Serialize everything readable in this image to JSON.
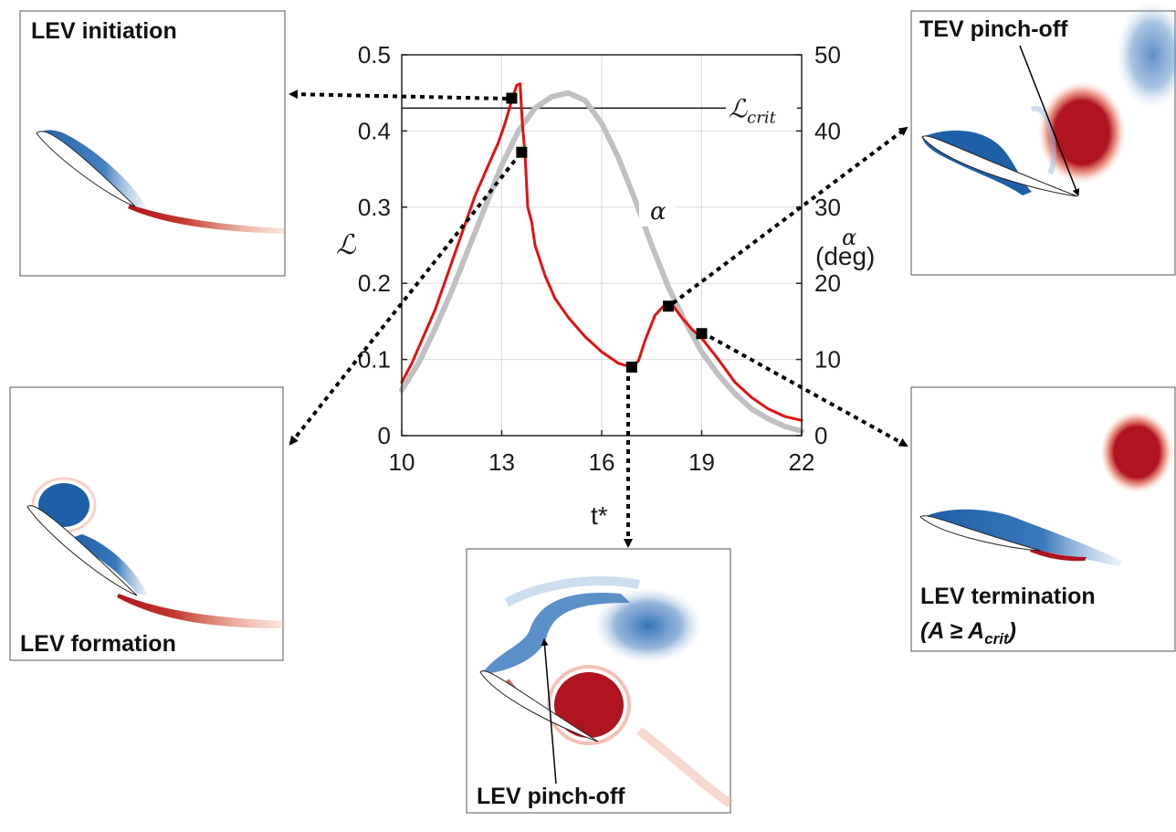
{
  "chart_data": {
    "type": "line",
    "x_label": "t*",
    "x_ticks": [
      "10",
      "13",
      "16",
      "19",
      "22"
    ],
    "xlim": [
      10,
      22
    ],
    "y_left_label": "ℒ",
    "y_left_ticks": [
      "0",
      "0.1",
      "0.2",
      "0.3",
      "0.4",
      "0.5"
    ],
    "ylim_left": [
      0,
      0.5
    ],
    "y_right_label_top": "α",
    "y_right_label_bottom": "(deg)",
    "y_right_ticks": [
      "0",
      "10",
      "20",
      "30",
      "40",
      "50"
    ],
    "ylim_right": [
      0,
      50
    ],
    "grid": true,
    "critical_line": {
      "label": "ℒ",
      "subscript": "crit",
      "value": 0.43
    },
    "alpha_curve_label": "α",
    "series": [
      {
        "color": "#e3110f",
        "axis": "left",
        "x": [
          10.0,
          10.3,
          10.6,
          11.0,
          11.4,
          11.8,
          12.2,
          12.6,
          12.9,
          13.1,
          13.3,
          13.45,
          13.55,
          13.62,
          13.7,
          13.78,
          13.9,
          14.0,
          14.3,
          14.6,
          15.0,
          15.5,
          16.0,
          16.5,
          16.9,
          17.1,
          17.3,
          17.6,
          17.9,
          18.15,
          18.4,
          18.7,
          19.0,
          19.5,
          20.0,
          20.5,
          21.0,
          21.5,
          22.0
        ],
        "values": [
          0.07,
          0.095,
          0.125,
          0.165,
          0.215,
          0.265,
          0.315,
          0.355,
          0.385,
          0.41,
          0.44,
          0.46,
          0.462,
          0.41,
          0.37,
          0.3,
          0.28,
          0.25,
          0.21,
          0.18,
          0.155,
          0.13,
          0.11,
          0.095,
          0.09,
          0.098,
          0.125,
          0.158,
          0.172,
          0.17,
          0.155,
          0.14,
          0.128,
          0.1,
          0.07,
          0.05,
          0.035,
          0.025,
          0.02
        ]
      },
      {
        "color": "#c0c0c0",
        "axis": "right",
        "x": [
          10.0,
          10.5,
          11.0,
          11.5,
          12.0,
          12.5,
          13.0,
          13.5,
          14.0,
          14.5,
          15.0,
          15.5,
          16.0,
          16.5,
          17.0,
          17.5,
          18.0,
          18.5,
          19.0,
          19.5,
          20.0,
          20.5,
          21.0,
          21.5,
          22.0
        ],
        "values": [
          6.0,
          9.5,
          14.0,
          19.0,
          24.5,
          30.0,
          35.5,
          40.0,
          43.0,
          44.5,
          45.0,
          44.0,
          41.0,
          36.5,
          31.0,
          25.0,
          19.5,
          15.0,
          11.0,
          8.0,
          5.5,
          3.5,
          2.2,
          1.2,
          0.6
        ]
      }
    ],
    "markers": [
      {
        "x": 13.3,
        "y": 0.443
      },
      {
        "x": 13.6,
        "y": 0.372
      },
      {
        "x": 16.9,
        "y": 0.09
      },
      {
        "x": 18.0,
        "y": 0.17
      },
      {
        "x": 19.0,
        "y": 0.134
      }
    ]
  },
  "panels": {
    "initiation": {
      "label": "LEV initiation"
    },
    "formation": {
      "label": "LEV formation"
    },
    "pinchoff": {
      "label": "LEV pinch-off"
    },
    "tev": {
      "label": "TEV pinch-off"
    },
    "termination": {
      "label_line1": "LEV termination",
      "label_line2_prefix": "(A ≥ A",
      "label_line2_sub": "crit",
      "label_line2_suffix": ")"
    }
  },
  "colors": {
    "lift_curve": "#e3110f",
    "alpha_curve": "#c0c0c0",
    "vortex_blue": "#1f5fa8",
    "vortex_red": "#b0141f"
  }
}
